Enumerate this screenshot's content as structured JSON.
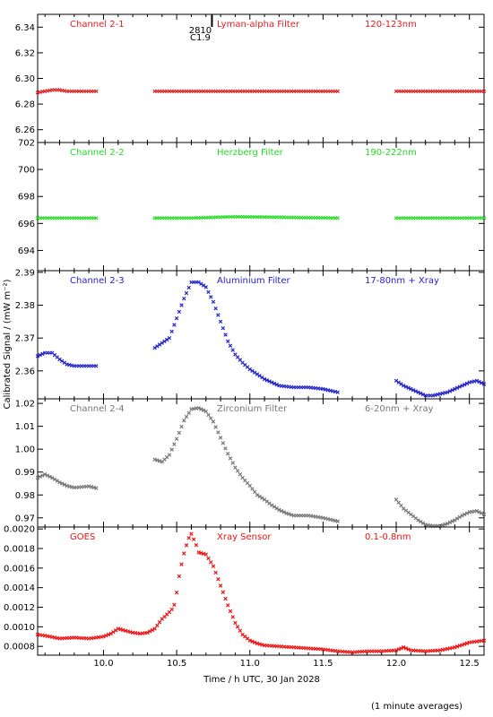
{
  "x_axis": {
    "label": "Time / h UTC, 30 Jan 2028",
    "range": [
      9.55,
      12.6
    ],
    "ticks": [
      10.0,
      10.5,
      11.0,
      11.5,
      12.0,
      12.5
    ],
    "tick_labels": [
      "10.0",
      "10.5",
      "11.0",
      "11.5",
      "12.0",
      "12.5"
    ]
  },
  "y_axis_label": "Calibrated Signal / (mW m⁻²)",
  "footnote": "(1 minute averages)",
  "event_marker": {
    "x": 10.6,
    "labels": [
      "2810",
      "C1.9"
    ]
  },
  "chart_data": [
    {
      "type": "scatter",
      "name": "Channel 2-1",
      "filter": "Lyman-alpha Filter",
      "band": "120-123nm",
      "color": "#dd2020",
      "ylim": [
        6.25,
        6.35
      ],
      "yticks": [
        6.26,
        6.28,
        6.3,
        6.32,
        6.34
      ],
      "ytick_labels": [
        "6.26",
        "6.28",
        "6.30",
        "6.32",
        "6.34"
      ],
      "segments": [
        {
          "x": [
            9.55,
            9.6,
            9.65,
            9.7,
            9.75,
            9.8,
            9.85,
            9.9,
            9.95
          ],
          "y": [
            6.289,
            6.29,
            6.291,
            6.291,
            6.29,
            6.29,
            6.29,
            6.29,
            6.29
          ]
        },
        {
          "x": [
            10.35,
            11.6
          ],
          "y": [
            6.29,
            6.29
          ]
        },
        {
          "x": [
            12.0,
            12.6
          ],
          "y": [
            6.29,
            6.29
          ]
        }
      ]
    },
    {
      "type": "scatter",
      "name": "Channel 2-2",
      "filter": "Herzberg Filter",
      "band": "190-222nm",
      "color": "#22dd22",
      "ylim": [
        692.5,
        702.0
      ],
      "yticks": [
        694,
        696,
        698,
        700,
        702
      ],
      "ytick_labels": [
        "694",
        "696",
        "698",
        "700",
        "702"
      ],
      "segments": [
        {
          "x": [
            9.55,
            9.95
          ],
          "y": [
            696.4,
            696.4
          ]
        },
        {
          "x": [
            10.35,
            10.6,
            10.9,
            11.6
          ],
          "y": [
            696.4,
            696.4,
            696.5,
            696.4
          ]
        },
        {
          "x": [
            12.0,
            12.6
          ],
          "y": [
            696.4,
            696.4
          ]
        }
      ]
    },
    {
      "type": "scatter",
      "name": "Channel 2-3",
      "filter": "Aluminium Filter",
      "band": "17-80nm + Xray",
      "color": "#2222cc",
      "ylim": [
        2.3515,
        2.3905
      ],
      "yticks": [
        2.36,
        2.37,
        2.38,
        2.39
      ],
      "ytick_labels": [
        "2.36",
        "2.37",
        "2.38",
        "2.39"
      ],
      "segments": [
        {
          "x": [
            9.55,
            9.6,
            9.65,
            9.7,
            9.75,
            9.8,
            9.85,
            9.9,
            9.95
          ],
          "y": [
            2.3645,
            2.3655,
            2.3655,
            2.3635,
            2.362,
            2.3615,
            2.3615,
            2.3615,
            2.3615
          ]
        },
        {
          "x": [
            10.35,
            10.4,
            10.45,
            10.5,
            10.55,
            10.6,
            10.65,
            10.7,
            10.75,
            10.8,
            10.85,
            10.9,
            10.95,
            11.0,
            11.05,
            11.1,
            11.15,
            11.2,
            11.3,
            11.4,
            11.5,
            11.6
          ],
          "y": [
            2.367,
            2.3685,
            2.37,
            2.376,
            2.382,
            2.387,
            2.387,
            2.3855,
            2.381,
            2.375,
            2.369,
            2.365,
            2.3625,
            2.3605,
            2.359,
            2.3575,
            2.3565,
            2.3555,
            2.355,
            2.355,
            2.3545,
            2.3535
          ]
        },
        {
          "x": [
            12.0,
            12.05,
            12.1,
            12.15,
            12.2,
            12.25,
            12.3,
            12.35,
            12.4,
            12.45,
            12.5,
            12.55,
            12.6
          ],
          "y": [
            2.357,
            2.3555,
            2.3545,
            2.3535,
            2.3525,
            2.3525,
            2.353,
            2.3535,
            2.3545,
            2.3555,
            2.3565,
            2.357,
            2.356
          ]
        }
      ]
    },
    {
      "type": "scatter",
      "name": "Channel 2-4",
      "filter": "Zirconium Filter",
      "band": "6-20nm + Xray",
      "color": "#777777",
      "ylim": [
        0.966,
        1.022
      ],
      "yticks": [
        0.97,
        0.98,
        0.99,
        1.0,
        1.01,
        1.02
      ],
      "ytick_labels": [
        "0.97",
        "0.98",
        "0.99",
        "1.00",
        "1.01",
        "1.02"
      ],
      "segments": [
        {
          "x": [
            9.55,
            9.6,
            9.65,
            9.7,
            9.75,
            9.8,
            9.85,
            9.9,
            9.95
          ],
          "y": [
            0.9875,
            0.989,
            0.9875,
            0.9855,
            0.984,
            0.9832,
            0.9835,
            0.9838,
            0.983
          ]
        },
        {
          "x": [
            10.35,
            10.4,
            10.45,
            10.5,
            10.55,
            10.6,
            10.65,
            10.7,
            10.75,
            10.8,
            10.85,
            10.9,
            10.95,
            11.0,
            11.05,
            11.1,
            11.15,
            11.2,
            11.25,
            11.3,
            11.4,
            11.5,
            11.6
          ],
          "y": [
            0.9955,
            0.9945,
            0.9975,
            1.0045,
            1.0125,
            1.0175,
            1.018,
            1.0165,
            1.012,
            1.005,
            0.998,
            0.992,
            0.9875,
            0.984,
            0.98,
            0.978,
            0.9755,
            0.9735,
            0.972,
            0.971,
            0.971,
            0.97,
            0.9685
          ]
        },
        {
          "x": [
            12.0,
            12.05,
            12.1,
            12.15,
            12.2,
            12.25,
            12.3,
            12.35,
            12.4,
            12.45,
            12.5,
            12.55,
            12.6
          ],
          "y": [
            0.978,
            0.974,
            0.9715,
            0.969,
            0.967,
            0.9665,
            0.9665,
            0.9675,
            0.969,
            0.971,
            0.9725,
            0.973,
            0.9715
          ]
        }
      ]
    },
    {
      "type": "scatter",
      "name": "GOES",
      "filter": "Xray Sensor",
      "band": "0.1-0.8nm",
      "color": "#ee1111",
      "ylim": [
        0.00071,
        0.00202
      ],
      "yticks": [
        0.0008,
        0.001,
        0.0012,
        0.0014,
        0.0016,
        0.0018,
        0.002
      ],
      "ytick_labels": [
        "0.0008",
        "0.0010",
        "0.0012",
        "0.0014",
        "0.0016",
        "0.0018",
        "0.0020"
      ],
      "segments": [
        {
          "x": [
            9.55,
            9.6,
            9.7,
            9.8,
            9.9,
            9.95,
            10.0,
            10.05,
            10.1,
            10.15,
            10.2,
            10.25,
            10.3,
            10.35,
            10.4,
            10.45,
            10.48,
            10.5,
            10.52,
            10.55,
            10.58,
            10.6,
            10.63,
            10.65,
            10.7,
            10.75,
            10.8,
            10.85,
            10.9,
            10.95,
            11.0,
            11.05,
            11.1,
            11.2,
            11.3,
            11.4,
            11.5,
            11.6,
            11.7,
            11.8,
            11.9,
            12.0,
            12.05,
            12.1,
            12.2,
            12.3,
            12.4,
            12.5,
            12.6
          ],
          "y": [
            0.00092,
            0.00091,
            0.00088,
            0.00089,
            0.00088,
            0.00089,
            0.0009,
            0.00093,
            0.00098,
            0.00096,
            0.00094,
            0.00093,
            0.00094,
            0.00098,
            0.00108,
            0.00115,
            0.0012,
            0.00135,
            0.00155,
            0.00175,
            0.0019,
            0.00195,
            0.00185,
            0.00176,
            0.00174,
            0.00162,
            0.00142,
            0.00122,
            0.00104,
            0.00092,
            0.00086,
            0.00083,
            0.00081,
            0.0008,
            0.00079,
            0.00078,
            0.00077,
            0.00075,
            0.00074,
            0.00075,
            0.00075,
            0.00076,
            0.00079,
            0.00076,
            0.00075,
            0.00076,
            0.00079,
            0.00084,
            0.00086
          ]
        }
      ]
    }
  ]
}
